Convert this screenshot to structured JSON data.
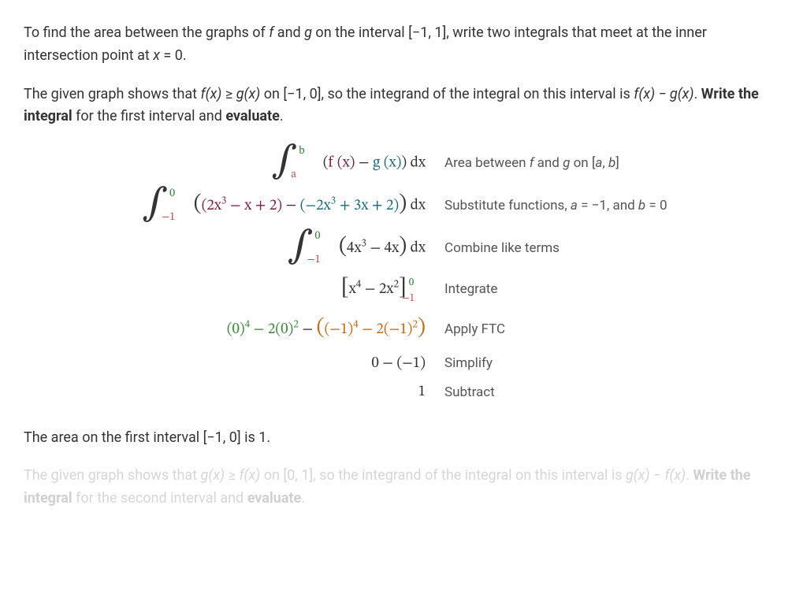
{
  "colors": {
    "text": "#333333",
    "explain": "#555555",
    "f_color": "#7b1f3d",
    "g_color": "#1a6b7a",
    "upper_bound": "#2e7d32",
    "lower_bound": "#b34a4a",
    "ftc_upper": "#3a8a3a",
    "ftc_lower": "#c96a12",
    "fade": "#d6d6d6"
  },
  "paragraphs": {
    "p1_a": "To find the area between the graphs of ",
    "p1_f": "f",
    "p1_b": " and ",
    "p1_g": "g",
    "p1_c": " on the interval [−1, 1], write two integrals that meet at the inner intersection point at ",
    "p1_x": "x",
    "p1_d": " = 0.",
    "p2_a": "The given graph shows that ",
    "p2_fx": "f(x)",
    "p2_b": " ≥ ",
    "p2_gx": "g(x)",
    "p2_c": " on [−1, 0], so the integrand of the integral on this interval is ",
    "p2_diff": "f(x) − g(x)",
    "p2_d": ". ",
    "p2_e": "Write the integral",
    "p2_f": " for the first interval and ",
    "p2_g": "evaluate",
    "p2_h": ".",
    "p3": "The area on the first interval [−1, 0] is 1.",
    "p4_a": "The given graph shows that ",
    "p4_gx": "g(x)",
    "p4_b": " ≥ ",
    "p4_fx": "f(x)",
    "p4_c": " on [0, 1], so the integrand of the integral on this interval is ",
    "p4_diff": "g(x) − f(x)",
    "p4_d": ". ",
    "p4_e": "Write the integral",
    "p4_f": " for the second interval and ",
    "p4_g": "evaluate",
    "p4_h": "."
  },
  "math": {
    "row1": {
      "upper": "b",
      "lower": "a",
      "f_label": "f",
      "g_label": "g",
      "explain_a": "Area between ",
      "explain_b": " and ",
      "explain_c": " on [",
      "explain_d": ", ",
      "explain_e": "]",
      "a": "a",
      "b": "b"
    },
    "row2": {
      "upper": "0",
      "lower": "−1",
      "f_expr_1": "2x",
      "f_expr_exp": "3",
      "f_expr_2": " − x + 2",
      "g_expr_1": "−2x",
      "g_expr_exp": "3",
      "g_expr_2": " + 3x + 2",
      "explain": "Substitute functions, ",
      "a_eq": "a",
      "a_val": " = −1, and ",
      "b_eq": "b",
      "b_val": " = 0"
    },
    "row3": {
      "upper": "0",
      "lower": "−1",
      "body_1": "4x",
      "body_exp": "3",
      "body_2": " − 4x",
      "explain": "Combine like terms"
    },
    "row4": {
      "body_1": "x",
      "exp1": "4",
      "body_2": " − 2x",
      "exp2": "2",
      "upper": "0",
      "lower": "−1",
      "explain": "Integrate"
    },
    "row5": {
      "u_1": "(0)",
      "u_exp1": "4",
      "u_2": " − 2(0)",
      "u_exp2": "2",
      "l_1": "(−1)",
      "l_exp1": "4",
      "l_2": " − 2(−1)",
      "l_exp2": "2",
      "explain": "Apply FTC"
    },
    "row6": {
      "body": "0 − (−1)",
      "explain": "Simplify"
    },
    "row7": {
      "body": "1",
      "explain": "Subtract"
    }
  }
}
